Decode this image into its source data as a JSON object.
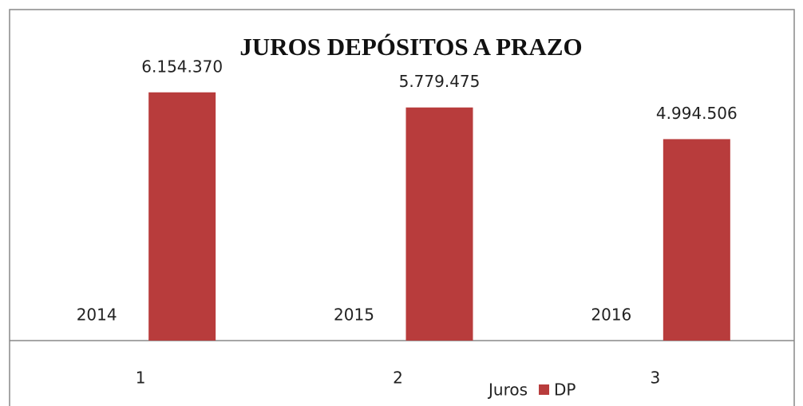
{
  "chart_data": {
    "type": "bar",
    "title": "JUROS DEPÓSITOS A PRAZO",
    "categories": [
      "1",
      "2",
      "3"
    ],
    "series": [
      {
        "name": "Juros",
        "color": "none",
        "values": [
          2014,
          2015,
          2016
        ]
      },
      {
        "name": "DP",
        "color": "#b83c3c",
        "values": [
          6154370,
          5779475,
          4994506
        ],
        "value_labels": [
          "6.154.370",
          "5.779.475",
          "4.994.506"
        ]
      }
    ],
    "ylim": [
      0,
      7000000
    ]
  }
}
